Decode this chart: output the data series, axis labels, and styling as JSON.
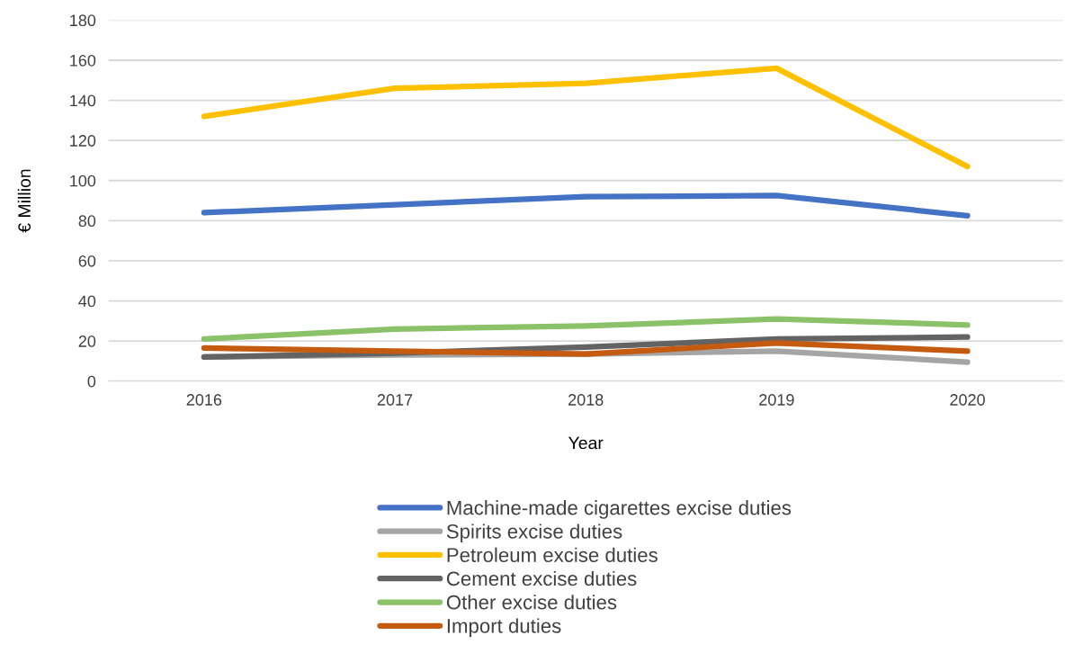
{
  "chart_data": {
    "type": "line",
    "xlabel": "Year",
    "ylabel": "€ Million",
    "categories": [
      "2016",
      "2017",
      "2018",
      "2019",
      "2020"
    ],
    "series": [
      {
        "name": "Machine-made cigarettes excise duties",
        "color": "#4472c4",
        "values": [
          84,
          88,
          92,
          92.5,
          82.5
        ]
      },
      {
        "name": "Spirits excise duties",
        "color": "#a5a5a5",
        "values": [
          12,
          13,
          13.5,
          15,
          9.5
        ]
      },
      {
        "name": "Petroleum excise duties",
        "color": "#ffc000",
        "values": [
          132,
          146,
          148.5,
          156,
          107
        ]
      },
      {
        "name": "Cement excise duties",
        "color": "#636363",
        "values": [
          12,
          14,
          17,
          21,
          22
        ]
      },
      {
        "name": "Other excise duties",
        "color": "#8bc168",
        "values": [
          21,
          26,
          27.5,
          31,
          28
        ]
      },
      {
        "name": "Import duties",
        "color": "#c55a11",
        "values": [
          16.5,
          15,
          13.5,
          19,
          15
        ]
      }
    ],
    "ylim": [
      0,
      180
    ],
    "yticks": [
      0,
      20,
      40,
      60,
      80,
      100,
      120,
      140,
      160,
      180
    ],
    "grid": "y",
    "legend": "bottom",
    "marker": "none",
    "line_style": "solid"
  }
}
